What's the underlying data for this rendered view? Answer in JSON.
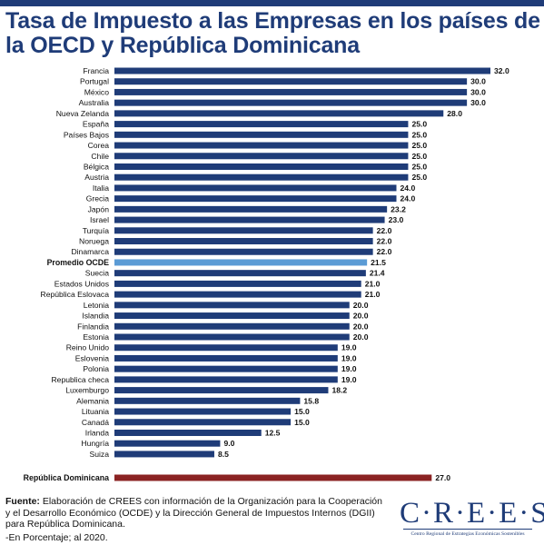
{
  "title": "Tasa de Impuesto a las Empresas en los países de la OECD y República Dominicana",
  "footer": {
    "source_label": "Fuente:",
    "source_text": " Elaboración de CREES con información de la Organización para la Cooperación y el Desarrollo Económico (OCDE) y la Dirección General de Impuestos Internos (DGII) para República Dominicana.",
    "note": "-En Porcentaje; al 2020."
  },
  "logo": {
    "wordmark": "C·R·E·E·S",
    "subtitle": "Centro Regional de Estrategias Económicas Sostenibles"
  },
  "colors": {
    "bar": "#1f3c78",
    "average": "#5b9bd5",
    "dominican": "#8b2323",
    "title": "#1f3c78"
  },
  "chart_data": {
    "type": "bar",
    "orientation": "horizontal",
    "value_labels": "end",
    "categories": [
      "Francia",
      "Portugal",
      "México",
      "Australia",
      "Nueva Zelanda",
      "España",
      "Países Bajos",
      "Corea",
      "Chile",
      "Bélgica",
      "Austria",
      "Italia",
      "Grecia",
      "Japón",
      "Israel",
      "Turquía",
      "Noruega",
      "Dinamarca",
      "Promedio OCDE",
      "Suecia",
      "Estados Unidos",
      "República Eslovaca",
      "Letonia",
      "Islandia",
      "Finlandia",
      "Estonia",
      "Reino Unido",
      "Eslovenia",
      "Polonia",
      "Republica checa",
      "Luxemburgo",
      "Alemania",
      "Lituania",
      "Canadá",
      "Irlanda",
      "Hungría",
      "Suiza",
      "República Dominicana"
    ],
    "values": [
      32.0,
      30.0,
      30.0,
      30.0,
      28.0,
      25.0,
      25.0,
      25.0,
      25.0,
      25.0,
      25.0,
      24.0,
      24.0,
      23.2,
      23.0,
      22.0,
      22.0,
      22.0,
      21.5,
      21.4,
      21.0,
      21.0,
      20.0,
      20.0,
      20.0,
      20.0,
      19.0,
      19.0,
      19.0,
      19.0,
      18.2,
      15.8,
      15.0,
      15.0,
      12.5,
      9.0,
      8.5,
      27.0
    ],
    "value_labels_text": [
      "32.0",
      "30.0",
      "30.0",
      "30.0",
      "28.0",
      "25.0",
      "25.0",
      "25.0",
      "25.0",
      "25.0",
      "25.0",
      "24.0",
      "24.0",
      "23.2",
      "23.0",
      "22.0",
      "22.0",
      "22.0",
      "21.5",
      "21.4",
      "21.0",
      "21.0",
      "20.0",
      "20.0",
      "20.0",
      "20.0",
      "19.0",
      "19.0",
      "19.0",
      "19.0",
      "18.2",
      "15.8",
      "15.0",
      "15.0",
      "12.5",
      "9.0",
      "8.5",
      "27.0"
    ],
    "highlight": {
      "Promedio OCDE": "average",
      "República Dominicana": "dominican"
    },
    "xlim": [
      0,
      32
    ],
    "grid": false,
    "legend": "none"
  }
}
